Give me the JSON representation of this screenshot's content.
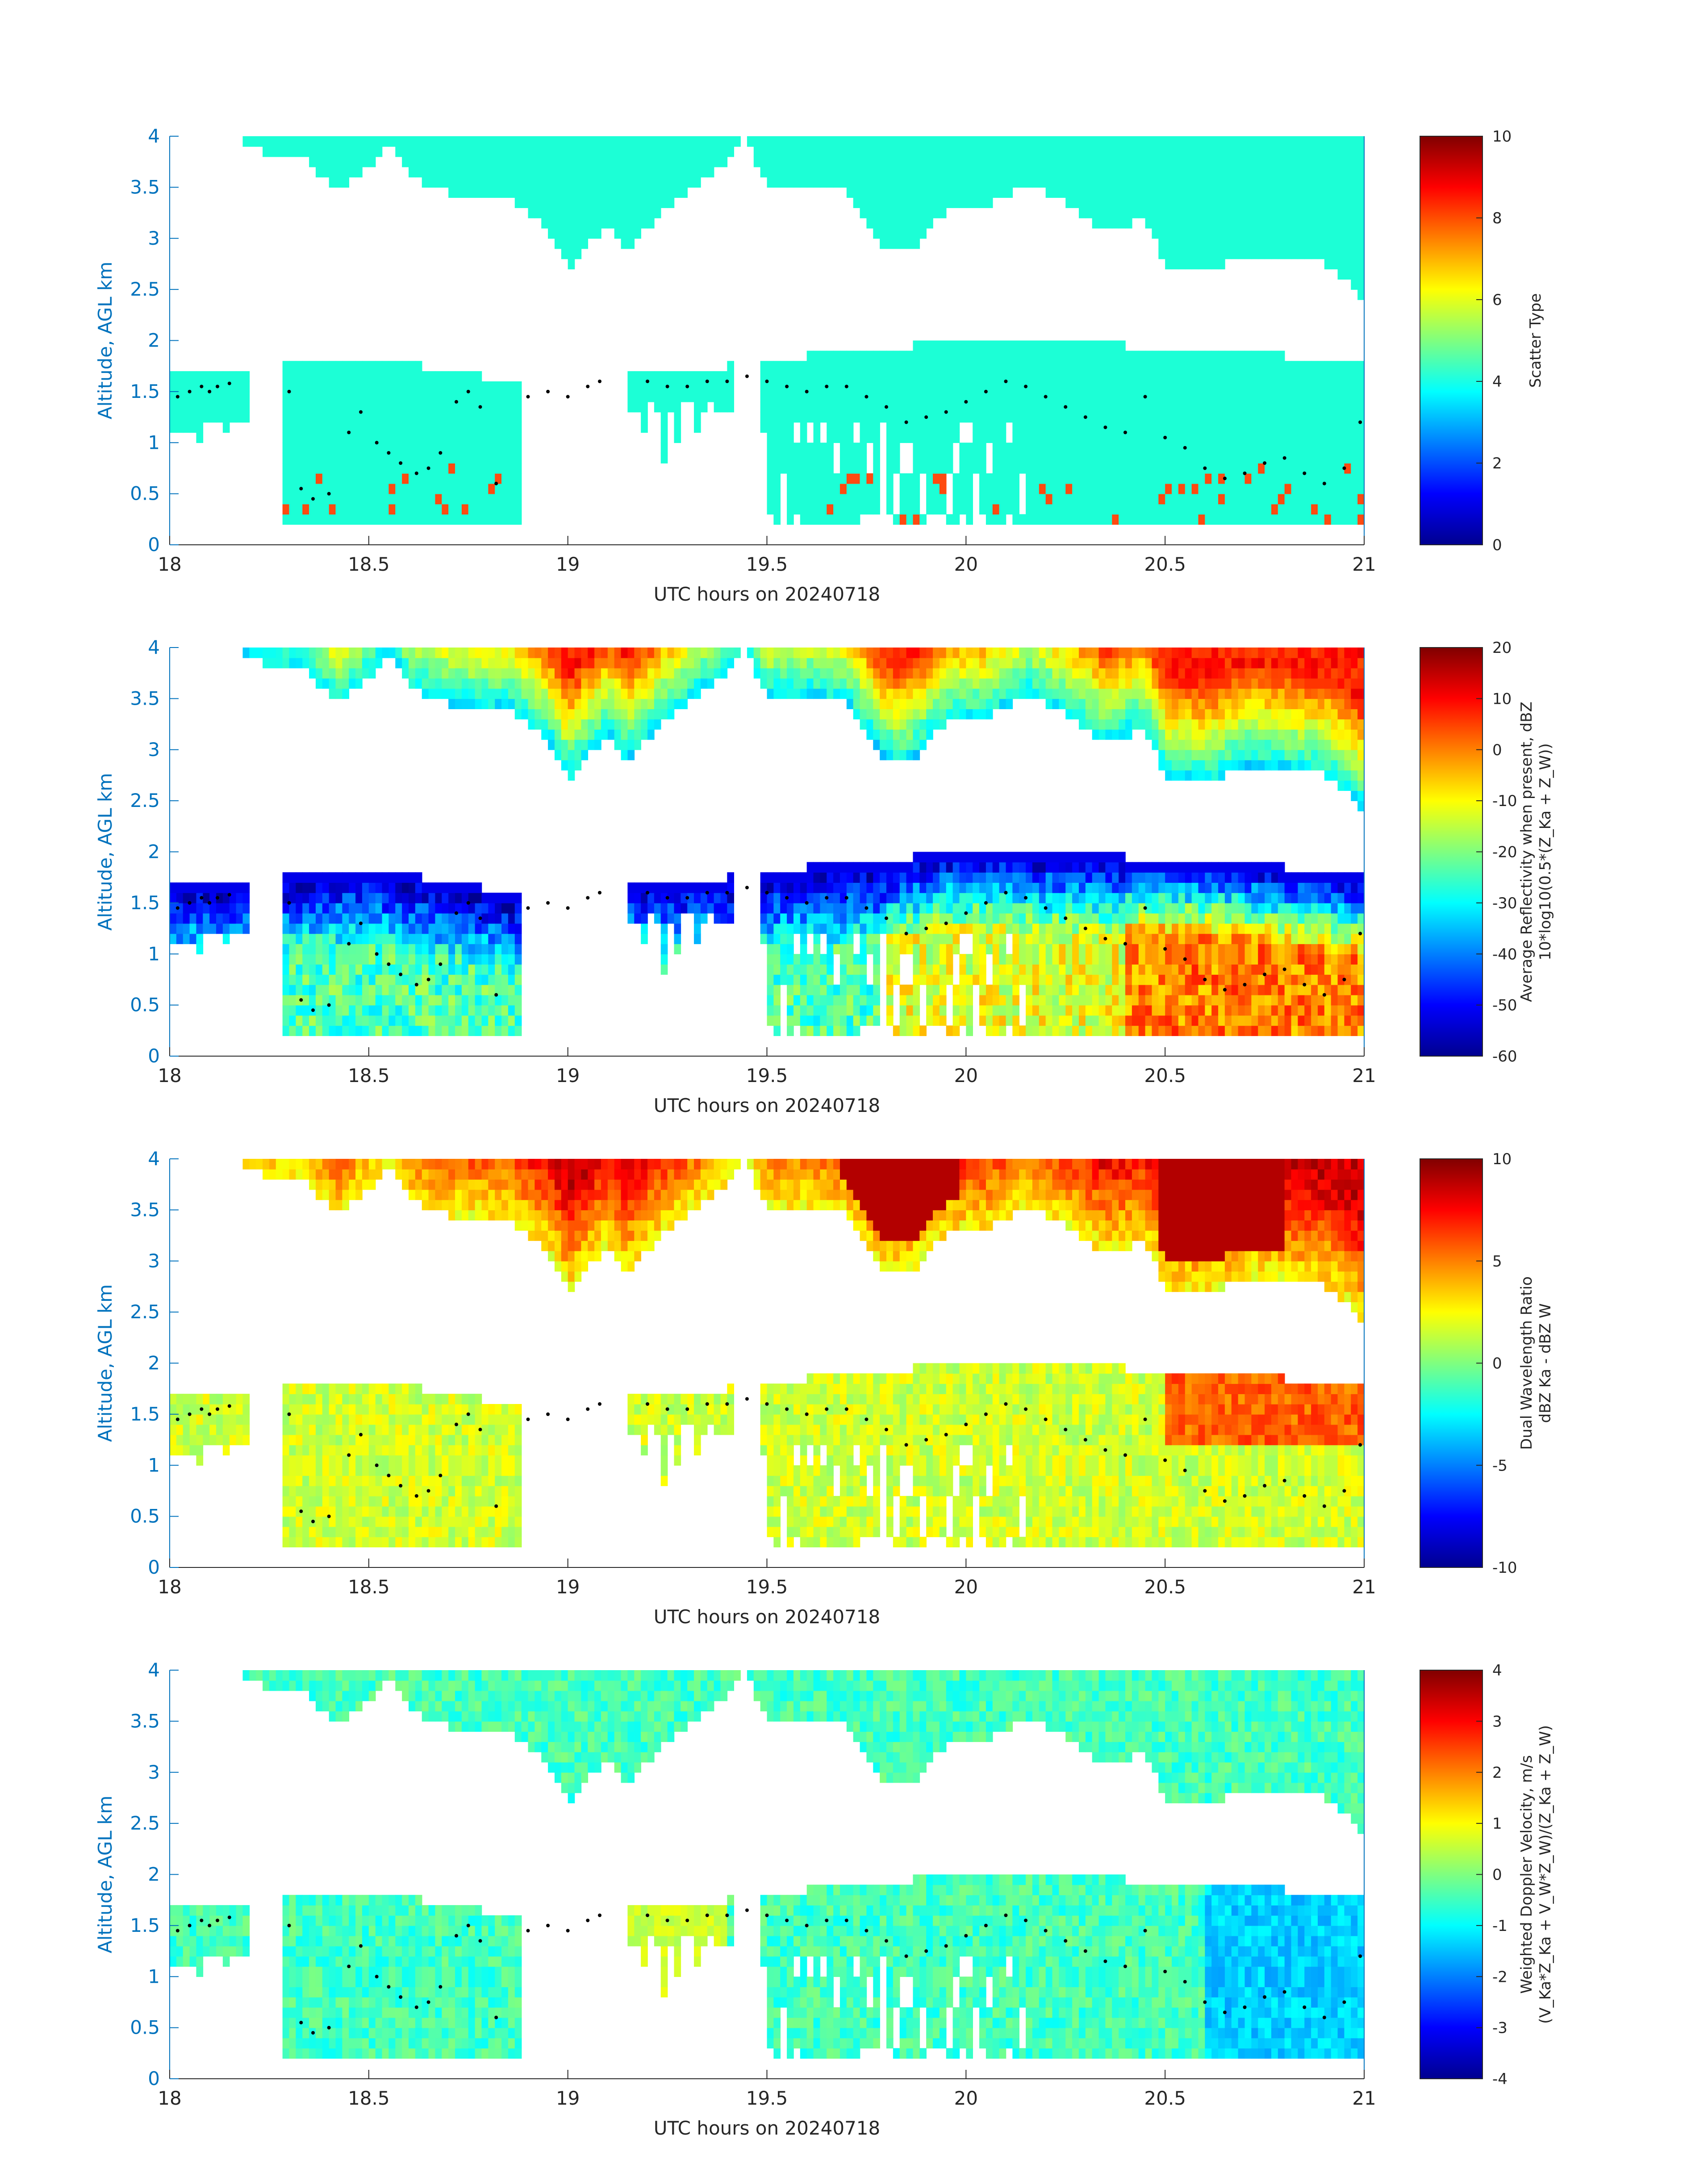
{
  "colors": {
    "axis_blue": "#0072BD",
    "text_dark": "#262626",
    "scatter_fill": "#1cffd6",
    "scatter_orange": "#ff4a10",
    "dot_color": "#000000"
  },
  "chart_data": [
    {
      "type": "heatmap",
      "panel": "scatter-type",
      "xlabel": "UTC hours on 20240718",
      "ylabel": "Altitude, AGL km",
      "xlim": [
        18,
        21
      ],
      "ylim": [
        0,
        4
      ],
      "xticks": [
        "18",
        "18.5",
        "19",
        "19.5",
        "20",
        "20.5",
        "21"
      ],
      "yticks": [
        "0",
        "0.5",
        "1",
        "1.5",
        "2",
        "2.5",
        "3",
        "3.5",
        "4"
      ],
      "colorbar": {
        "label": "Scatter Type",
        "label2": "",
        "range": [
          0,
          10
        ],
        "ticks": [
          "0",
          "2",
          "4",
          "6",
          "8",
          "10"
        ]
      },
      "dominant_value": 4,
      "secondary_value": 8
    },
    {
      "type": "heatmap",
      "panel": "reflectivity",
      "xlabel": "UTC hours on 20240718",
      "ylabel": "Altitude, AGL km",
      "xlim": [
        18,
        21
      ],
      "ylim": [
        0,
        4
      ],
      "xticks": [
        "18",
        "18.5",
        "19",
        "19.5",
        "20",
        "20.5",
        "21"
      ],
      "yticks": [
        "0",
        "0.5",
        "1",
        "1.5",
        "2",
        "2.5",
        "3",
        "3.5",
        "4"
      ],
      "colorbar": {
        "label": "Average Reflectivity when present, dBZ",
        "label2": "10*log10(0.5*(Z_Ka + Z_W))",
        "range": [
          -60,
          20
        ],
        "ticks": [
          "-60",
          "-50",
          "-40",
          "-30",
          "-20",
          "-10",
          "0",
          "10",
          "20"
        ]
      }
    },
    {
      "type": "heatmap",
      "panel": "dual-wavelength-ratio",
      "xlabel": "UTC hours on 20240718",
      "ylabel": "Altitude, AGL km",
      "xlim": [
        18,
        21
      ],
      "ylim": [
        0,
        4
      ],
      "xticks": [
        "18",
        "18.5",
        "19",
        "19.5",
        "20",
        "20.5",
        "21"
      ],
      "yticks": [
        "0",
        "0.5",
        "1",
        "1.5",
        "2",
        "2.5",
        "3",
        "3.5",
        "4"
      ],
      "colorbar": {
        "label": "Dual Wavelength Ratio",
        "label2": "dBZ Ka - dBZ W",
        "range": [
          -10,
          10
        ],
        "ticks": [
          "-10",
          "-5",
          "0",
          "5",
          "10"
        ]
      }
    },
    {
      "type": "heatmap",
      "panel": "doppler-velocity",
      "xlabel": "UTC hours on 20240718",
      "ylabel": "Altitude, AGL km",
      "xlim": [
        18,
        21
      ],
      "ylim": [
        0,
        4
      ],
      "xticks": [
        "18",
        "18.5",
        "19",
        "19.5",
        "20",
        "20.5",
        "21"
      ],
      "yticks": [
        "0",
        "0.5",
        "1",
        "1.5",
        "2",
        "2.5",
        "3",
        "3.5",
        "4"
      ],
      "colorbar": {
        "label": "Weighted Doppler Velocity, m/s",
        "label2": "(V_Ka*Z_Ka + V_W*Z_W)/(Z_Ka + Z_W)",
        "range": [
          -4,
          4
        ],
        "ticks": [
          "-4",
          "-3",
          "-2",
          "-1",
          "0",
          "1",
          "2",
          "3",
          "4"
        ]
      }
    }
  ],
  "cloud_structure": {
    "upper_top_km": 4.0,
    "upper_base_km": [
      [
        18.17,
        4.0
      ],
      [
        18.23,
        3.85
      ],
      [
        18.35,
        3.75
      ],
      [
        18.42,
        3.45
      ],
      [
        18.5,
        3.7
      ],
      [
        18.55,
        3.95
      ],
      [
        18.6,
        3.6
      ],
      [
        18.7,
        3.45
      ],
      [
        18.85,
        3.4
      ],
      [
        18.95,
        3.1
      ],
      [
        19.0,
        2.7
      ],
      [
        19.1,
        3.15
      ],
      [
        19.15,
        2.9
      ],
      [
        19.25,
        3.3
      ],
      [
        19.38,
        3.7
      ],
      [
        19.45,
        4.0
      ],
      [
        19.5,
        3.5
      ],
      [
        19.6,
        3.55
      ],
      [
        19.7,
        3.45
      ],
      [
        19.8,
        2.9
      ],
      [
        19.85,
        2.85
      ],
      [
        19.95,
        3.25
      ],
      [
        20.05,
        3.3
      ],
      [
        20.15,
        3.55
      ],
      [
        20.25,
        3.35
      ],
      [
        20.35,
        3.05
      ],
      [
        20.45,
        3.2
      ],
      [
        20.5,
        2.75
      ],
      [
        20.6,
        2.65
      ],
      [
        20.7,
        2.85
      ],
      [
        20.8,
        2.8
      ],
      [
        20.9,
        2.75
      ],
      [
        20.97,
        2.55
      ],
      [
        21.0,
        2.4
      ]
    ],
    "lower_top_km": [
      [
        18.0,
        1.7
      ],
      [
        18.17,
        1.7
      ],
      [
        18.3,
        1.8
      ],
      [
        18.5,
        1.85
      ],
      [
        18.7,
        1.7
      ],
      [
        18.85,
        1.6
      ],
      [
        19.05,
        1.7
      ],
      [
        19.2,
        1.75
      ],
      [
        19.4,
        1.75
      ],
      [
        19.6,
        1.85
      ],
      [
        19.8,
        1.9
      ],
      [
        20.0,
        2.05
      ],
      [
        20.2,
        2.0
      ],
      [
        20.4,
        1.95
      ],
      [
        20.6,
        1.95
      ],
      [
        20.8,
        1.85
      ],
      [
        21.0,
        1.75
      ]
    ],
    "gaps_hours": [
      [
        18.2,
        18.28
      ],
      [
        18.88,
        19.15
      ],
      [
        19.42,
        19.48
      ]
    ],
    "dots": [
      [
        18.02,
        1.45
      ],
      [
        18.05,
        1.5
      ],
      [
        18.08,
        1.55
      ],
      [
        18.1,
        1.5
      ],
      [
        18.12,
        1.55
      ],
      [
        18.15,
        1.58
      ],
      [
        18.3,
        1.5
      ],
      [
        18.33,
        0.55
      ],
      [
        18.36,
        0.45
      ],
      [
        18.4,
        0.5
      ],
      [
        18.45,
        1.1
      ],
      [
        18.48,
        1.3
      ],
      [
        18.52,
        1.0
      ],
      [
        18.55,
        0.9
      ],
      [
        18.58,
        0.8
      ],
      [
        18.62,
        0.7
      ],
      [
        18.65,
        0.75
      ],
      [
        18.68,
        0.9
      ],
      [
        18.72,
        1.4
      ],
      [
        18.75,
        1.5
      ],
      [
        18.78,
        1.35
      ],
      [
        18.82,
        0.6
      ],
      [
        18.9,
        1.45
      ],
      [
        18.95,
        1.5
      ],
      [
        19.0,
        1.45
      ],
      [
        19.05,
        1.55
      ],
      [
        19.08,
        1.6
      ],
      [
        19.2,
        1.6
      ],
      [
        19.25,
        1.55
      ],
      [
        19.3,
        1.55
      ],
      [
        19.35,
        1.6
      ],
      [
        19.4,
        1.6
      ],
      [
        19.45,
        1.65
      ],
      [
        19.5,
        1.6
      ],
      [
        19.55,
        1.55
      ],
      [
        19.6,
        1.5
      ],
      [
        19.65,
        1.55
      ],
      [
        19.7,
        1.55
      ],
      [
        19.75,
        1.45
      ],
      [
        19.8,
        1.35
      ],
      [
        19.85,
        1.2
      ],
      [
        19.9,
        1.25
      ],
      [
        19.95,
        1.3
      ],
      [
        20.0,
        1.4
      ],
      [
        20.05,
        1.5
      ],
      [
        20.1,
        1.6
      ],
      [
        20.15,
        1.55
      ],
      [
        20.2,
        1.45
      ],
      [
        20.25,
        1.35
      ],
      [
        20.3,
        1.25
      ],
      [
        20.35,
        1.15
      ],
      [
        20.4,
        1.1
      ],
      [
        20.45,
        1.45
      ],
      [
        20.5,
        1.05
      ],
      [
        20.55,
        0.95
      ],
      [
        20.6,
        0.75
      ],
      [
        20.65,
        0.65
      ],
      [
        20.7,
        0.7
      ],
      [
        20.75,
        0.8
      ],
      [
        20.8,
        0.85
      ],
      [
        20.85,
        0.7
      ],
      [
        20.9,
        0.6
      ],
      [
        20.95,
        0.75
      ],
      [
        20.99,
        1.2
      ]
    ]
  }
}
